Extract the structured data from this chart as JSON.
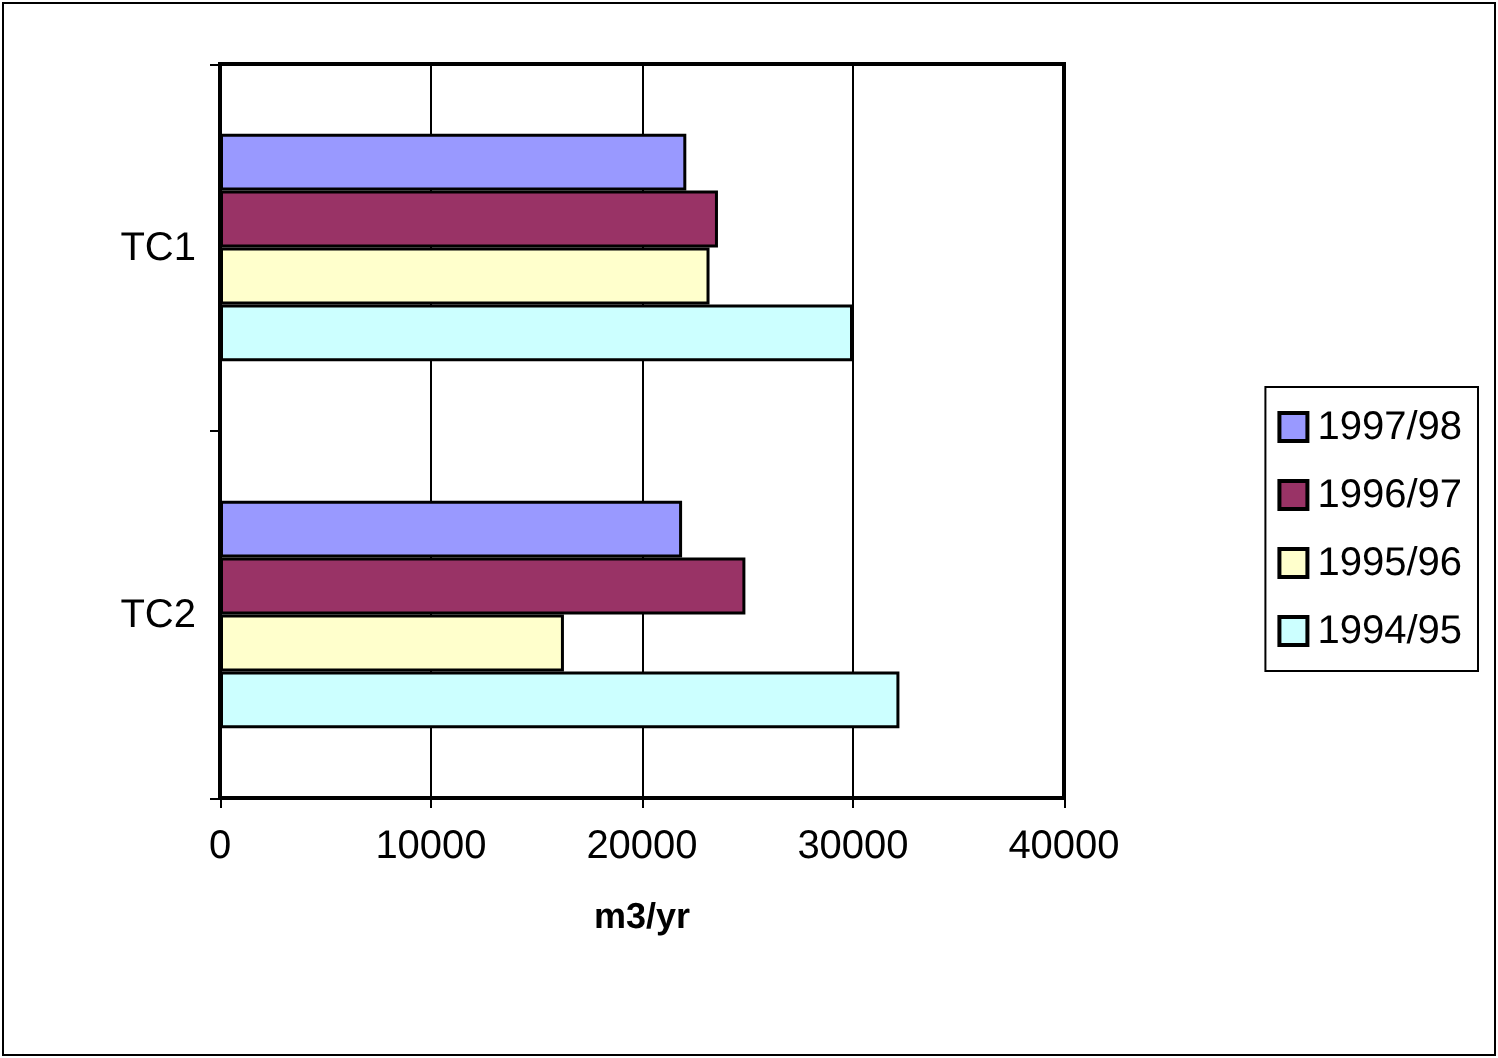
{
  "chart_data": {
    "type": "bar",
    "orientation": "horizontal",
    "xlabel": "m3/yr",
    "categories": [
      "TC1",
      "TC2"
    ],
    "series": [
      {
        "name": "1997/98",
        "color": "#9999ff",
        "values": [
          22100,
          21900
        ]
      },
      {
        "name": "1996/97",
        "color": "#993366",
        "values": [
          23600,
          24900
        ]
      },
      {
        "name": "1995/96",
        "color": "#ffffcc",
        "values": [
          23200,
          16300
        ]
      },
      {
        "name": "1994/95",
        "color": "#ccffff",
        "values": [
          30000,
          32200
        ]
      }
    ],
    "xlim": [
      0,
      40000
    ],
    "xticks": [
      0,
      10000,
      20000,
      30000,
      40000
    ],
    "grid": "x",
    "legend": "right"
  }
}
